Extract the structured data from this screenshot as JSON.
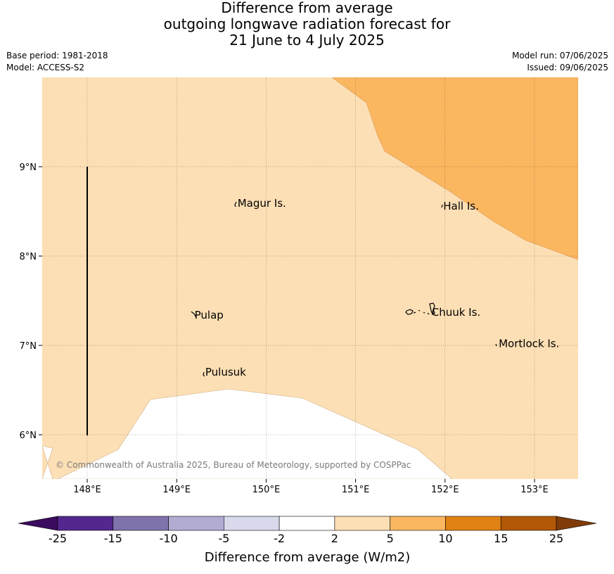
{
  "title": {
    "line1": "Difference from average",
    "line2": "outgoing longwave radiation forecast for",
    "line3": "21 June to 4 July 2025"
  },
  "meta": {
    "base_period": "Base period: 1981-2018",
    "model": "Model: ACCESS-S2",
    "model_run": "Model run: 07/06/2025",
    "issued": "Issued: 09/06/2025"
  },
  "map": {
    "lon_ticks": [
      "148°E",
      "149°E",
      "150°E",
      "151°E",
      "152°E",
      "153°E"
    ],
    "lat_ticks": [
      "9°N",
      "8°N",
      "7°N",
      "6°N"
    ],
    "lon_range": [
      147.5,
      153.5
    ],
    "lat_range": [
      5.5,
      10.0
    ],
    "places": [
      {
        "name": "Magur Is.",
        "lon": 149.68,
        "lat": 8.55
      },
      {
        "name": "Hall Is.",
        "lon": 151.98,
        "lat": 8.52
      },
      {
        "name": "Pulap",
        "lon": 149.2,
        "lat": 7.3
      },
      {
        "name": "Chuuk Is.",
        "lon": 151.85,
        "lat": 7.33
      },
      {
        "name": "Mortlock Is.",
        "lon": 152.6,
        "lat": 6.98
      },
      {
        "name": "Pulusuk",
        "lon": 149.32,
        "lat": 6.66
      }
    ],
    "copyright": "© Commonwealth of Australia 2025, Bureau of Meteorology, supported by COSPPac",
    "colors": {
      "anomaly_2_5": "#fddfb5",
      "anomaly_5_10": "#fbb660",
      "anomaly_neutral": "#ffffff"
    }
  },
  "colorbar": {
    "ticks": [
      "-25",
      "-15",
      "-10",
      "-5",
      "-2",
      "2",
      "5",
      "10",
      "15",
      "25"
    ],
    "colors": [
      "#3a0b5e",
      "#54278f",
      "#8073ac",
      "#b2abd2",
      "#d8daeb",
      "#ffffff",
      "#fddfb5",
      "#fbb660",
      "#e08214",
      "#b35806",
      "#7f3b08"
    ],
    "label": "Difference from average (W/m2)"
  }
}
